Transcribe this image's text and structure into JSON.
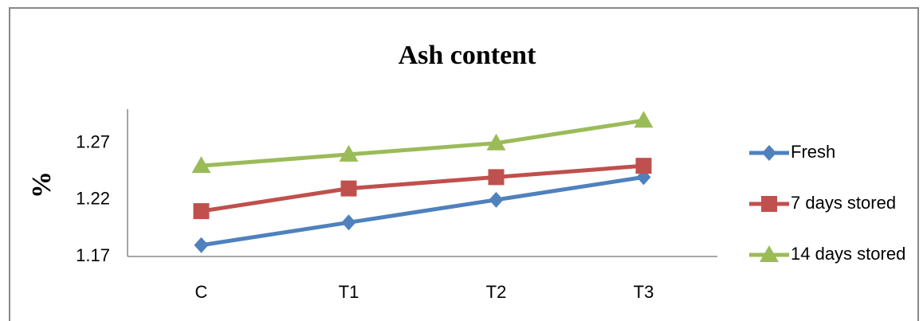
{
  "chart_data": {
    "type": "line",
    "title": "Ash content",
    "y_label": "%",
    "categories": [
      "C",
      "T1",
      "T2",
      "T3"
    ],
    "series": [
      {
        "name": "Fresh",
        "color": "#4f81bd",
        "marker": "diamond",
        "values": [
          1.18,
          1.2,
          1.22,
          1.24
        ]
      },
      {
        "name": "7 days stored",
        "color": "#c0504d",
        "marker": "square",
        "values": [
          1.21,
          1.23,
          1.24,
          1.25
        ]
      },
      {
        "name": "14 days stored",
        "color": "#9bbb59",
        "marker": "triangle",
        "values": [
          1.25,
          1.26,
          1.27,
          1.29
        ]
      }
    ],
    "ylim": [
      1.17,
      1.3
    ],
    "yticks": [
      1.17,
      1.22,
      1.27
    ],
    "grid": false,
    "legend": "right"
  }
}
